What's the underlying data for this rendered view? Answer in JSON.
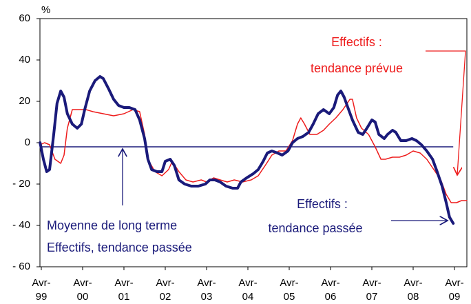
{
  "chart_data": {
    "type": "line",
    "y_unit": "%",
    "xlim": [
      -0.033,
      10.3
    ],
    "xticks": [
      {
        "value": 0,
        "label": "Avr-99"
      },
      {
        "value": 1,
        "label": "Avr-00"
      },
      {
        "value": 2,
        "label": "Avr-01"
      },
      {
        "value": 3,
        "label": "Avr-02"
      },
      {
        "value": 4,
        "label": "Avr-03"
      },
      {
        "value": 5,
        "label": "Avr-04"
      },
      {
        "value": 6,
        "label": "Avr-05"
      },
      {
        "value": 7,
        "label": "Avr-06"
      },
      {
        "value": 8,
        "label": "Avr-07"
      },
      {
        "value": 9,
        "label": "Avr-08"
      },
      {
        "value": 10,
        "label": "Avr-09"
      }
    ],
    "ylim": [
      -60,
      60
    ],
    "yticks": [
      {
        "value": -60,
        "label": "- 60"
      },
      {
        "value": -40,
        "label": "- 40"
      },
      {
        "value": -20,
        "label": "- 20"
      },
      0,
      20,
      40,
      60
    ],
    "mean_line": {
      "value": -2,
      "color": "#1a1a7a"
    },
    "series": [
      {
        "color": "#ee1c1c",
        "width": 1.5,
        "x": [
          -0.03,
          0.08,
          0.2,
          0.33,
          0.47,
          0.55,
          0.63,
          0.75,
          0.92,
          1.08,
          1.25,
          1.5,
          1.75,
          2,
          2.22,
          2.38,
          2.5,
          2.58,
          2.75,
          2.92,
          3.08,
          3.17,
          3.33,
          3.5,
          3.67,
          3.87,
          4,
          4.17,
          4.33,
          4.5,
          4.67,
          4.87,
          5.08,
          5.25,
          5.42,
          5.58,
          5.75,
          5.92,
          6.08,
          6.2,
          6.28,
          6.37,
          6.5,
          6.67,
          6.83,
          6.97,
          7.13,
          7.3,
          7.47,
          7.53,
          7.63,
          7.75,
          7.92,
          8.08,
          8.22,
          8.33,
          8.5,
          8.67,
          8.83,
          9,
          9.17,
          9.33,
          9.5,
          9.67,
          9.8,
          9.92,
          10.05,
          10.17,
          10.3
        ],
        "values": [
          -1,
          0,
          -1,
          -8,
          -10,
          -6,
          7,
          16,
          16,
          16,
          15,
          14,
          13,
          14,
          16,
          15,
          4,
          -8,
          -14,
          -16,
          -13,
          -9,
          -14,
          -18,
          -19,
          -18,
          -19,
          -17,
          -18,
          -19,
          -18,
          -19,
          -18,
          -16,
          -11,
          -6,
          -4,
          -4,
          1,
          9,
          12,
          9,
          4,
          4,
          6,
          9,
          12,
          16,
          21,
          21,
          12,
          7,
          4,
          -2,
          -8,
          -8,
          -7,
          -7,
          -6,
          -4,
          -5,
          -8,
          -13,
          -18,
          -25,
          -29,
          -29,
          -28,
          -28
        ]
      },
      {
        "color": "#1a1a7a",
        "width": 4,
        "x": [
          -0.03,
          0.05,
          0.13,
          0.2,
          0.3,
          0.38,
          0.47,
          0.55,
          0.63,
          0.75,
          0.87,
          0.97,
          1.05,
          1.17,
          1.3,
          1.42,
          1.5,
          1.63,
          1.75,
          1.87,
          2,
          2.13,
          2.27,
          2.38,
          2.5,
          2.58,
          2.67,
          2.8,
          2.92,
          3,
          3.12,
          3.22,
          3.33,
          3.47,
          3.63,
          3.8,
          3.97,
          4.08,
          4.2,
          4.33,
          4.47,
          4.63,
          4.75,
          4.83,
          4.97,
          5.13,
          5.25,
          5.37,
          5.47,
          5.58,
          5.72,
          5.83,
          5.97,
          6.08,
          6.2,
          6.33,
          6.47,
          6.58,
          6.7,
          6.83,
          6.97,
          7.08,
          7.17,
          7.25,
          7.33,
          7.42,
          7.53,
          7.67,
          7.78,
          7.88,
          8,
          8.08,
          8.17,
          8.3,
          8.38,
          8.5,
          8.58,
          8.7,
          8.83,
          8.97,
          9.08,
          9.2,
          9.33,
          9.47,
          9.58,
          9.7,
          9.8,
          9.88,
          9.97
        ],
        "values": [
          0,
          -8,
          -14,
          -13,
          4,
          19,
          25,
          22,
          14,
          9,
          7,
          9,
          16,
          25,
          30,
          32,
          31,
          26,
          21,
          18,
          17,
          17,
          16,
          11,
          2,
          -8,
          -13,
          -14,
          -14,
          -9,
          -8,
          -11,
          -18,
          -20,
          -21,
          -21,
          -20,
          -18,
          -18,
          -19,
          -21,
          -22,
          -22,
          -19,
          -17,
          -15,
          -13,
          -9,
          -5,
          -4,
          -5,
          -6,
          -4,
          0,
          2,
          3,
          5,
          9,
          14,
          16,
          14,
          17,
          23,
          25,
          22,
          17,
          11,
          5,
          4,
          7,
          11,
          10,
          4,
          2,
          4,
          6,
          5,
          1,
          1,
          2,
          1,
          -1,
          -4,
          -8,
          -14,
          -21,
          -29,
          -36,
          -39
        ]
      }
    ],
    "annotations": [
      {
        "text": "Effectifs :",
        "color": "#ee1c1c"
      },
      {
        "text": "tendance prévue",
        "color": "#ee1c1c"
      },
      {
        "text": "Effectifs :",
        "color": "#1a1a7a"
      },
      {
        "text": "tendance passée",
        "color": "#1a1a7a"
      },
      {
        "text": "Moyenne de long terme",
        "color": "#1a1a7a"
      },
      {
        "text": "Effectifs, tendance passée",
        "color": "#1a1a7a"
      }
    ]
  }
}
